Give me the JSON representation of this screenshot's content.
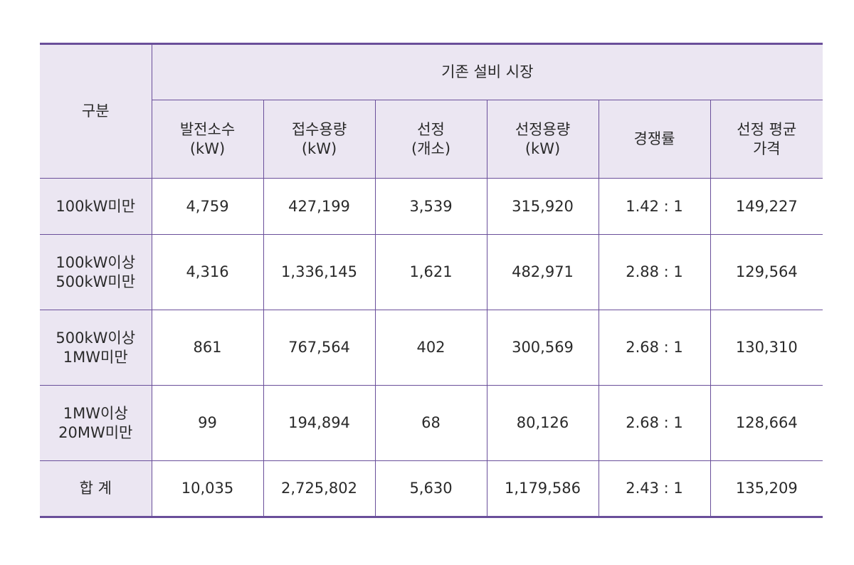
{
  "table": {
    "group_header": "구분",
    "market_header": "기존 설비 시장",
    "columns": [
      {
        "line1": "발전소수",
        "line2": "(kW)"
      },
      {
        "line1": "접수용량",
        "line2": "(kW)"
      },
      {
        "line1": "선정",
        "line2": "(개소)"
      },
      {
        "line1": "선정용량",
        "line2": "(kW)"
      },
      {
        "line1": "경쟁률",
        "line2": ""
      },
      {
        "line1": "선정 평균",
        "line2": "가격"
      }
    ],
    "rows": [
      {
        "label1": "100kW미만",
        "label2": "",
        "values": [
          "4,759",
          "427,199",
          "3,539",
          "315,920",
          "1.42 : 1",
          "149,227"
        ]
      },
      {
        "label1": "100kW이상",
        "label2": "500kW미만",
        "values": [
          "4,316",
          "1,336,145",
          "1,621",
          "482,971",
          "2.88 : 1",
          "129,564"
        ]
      },
      {
        "label1": "500kW이상",
        "label2": "1MW미만",
        "values": [
          "861",
          "767,564",
          "402",
          "300,569",
          "2.68 : 1",
          "130,310"
        ]
      },
      {
        "label1": "1MW이상",
        "label2": "20MW미만",
        "values": [
          "99",
          "194,894",
          "68",
          "80,126",
          "2.68 : 1",
          "128,664"
        ]
      },
      {
        "label1": "합 계",
        "label2": "",
        "values": [
          "10,035",
          "2,725,802",
          "5,630",
          "1,179,586",
          "2.43 : 1",
          "135,209"
        ]
      }
    ]
  },
  "colors": {
    "header_bg": "#ebe6f2",
    "border": "#6a4f9a"
  }
}
